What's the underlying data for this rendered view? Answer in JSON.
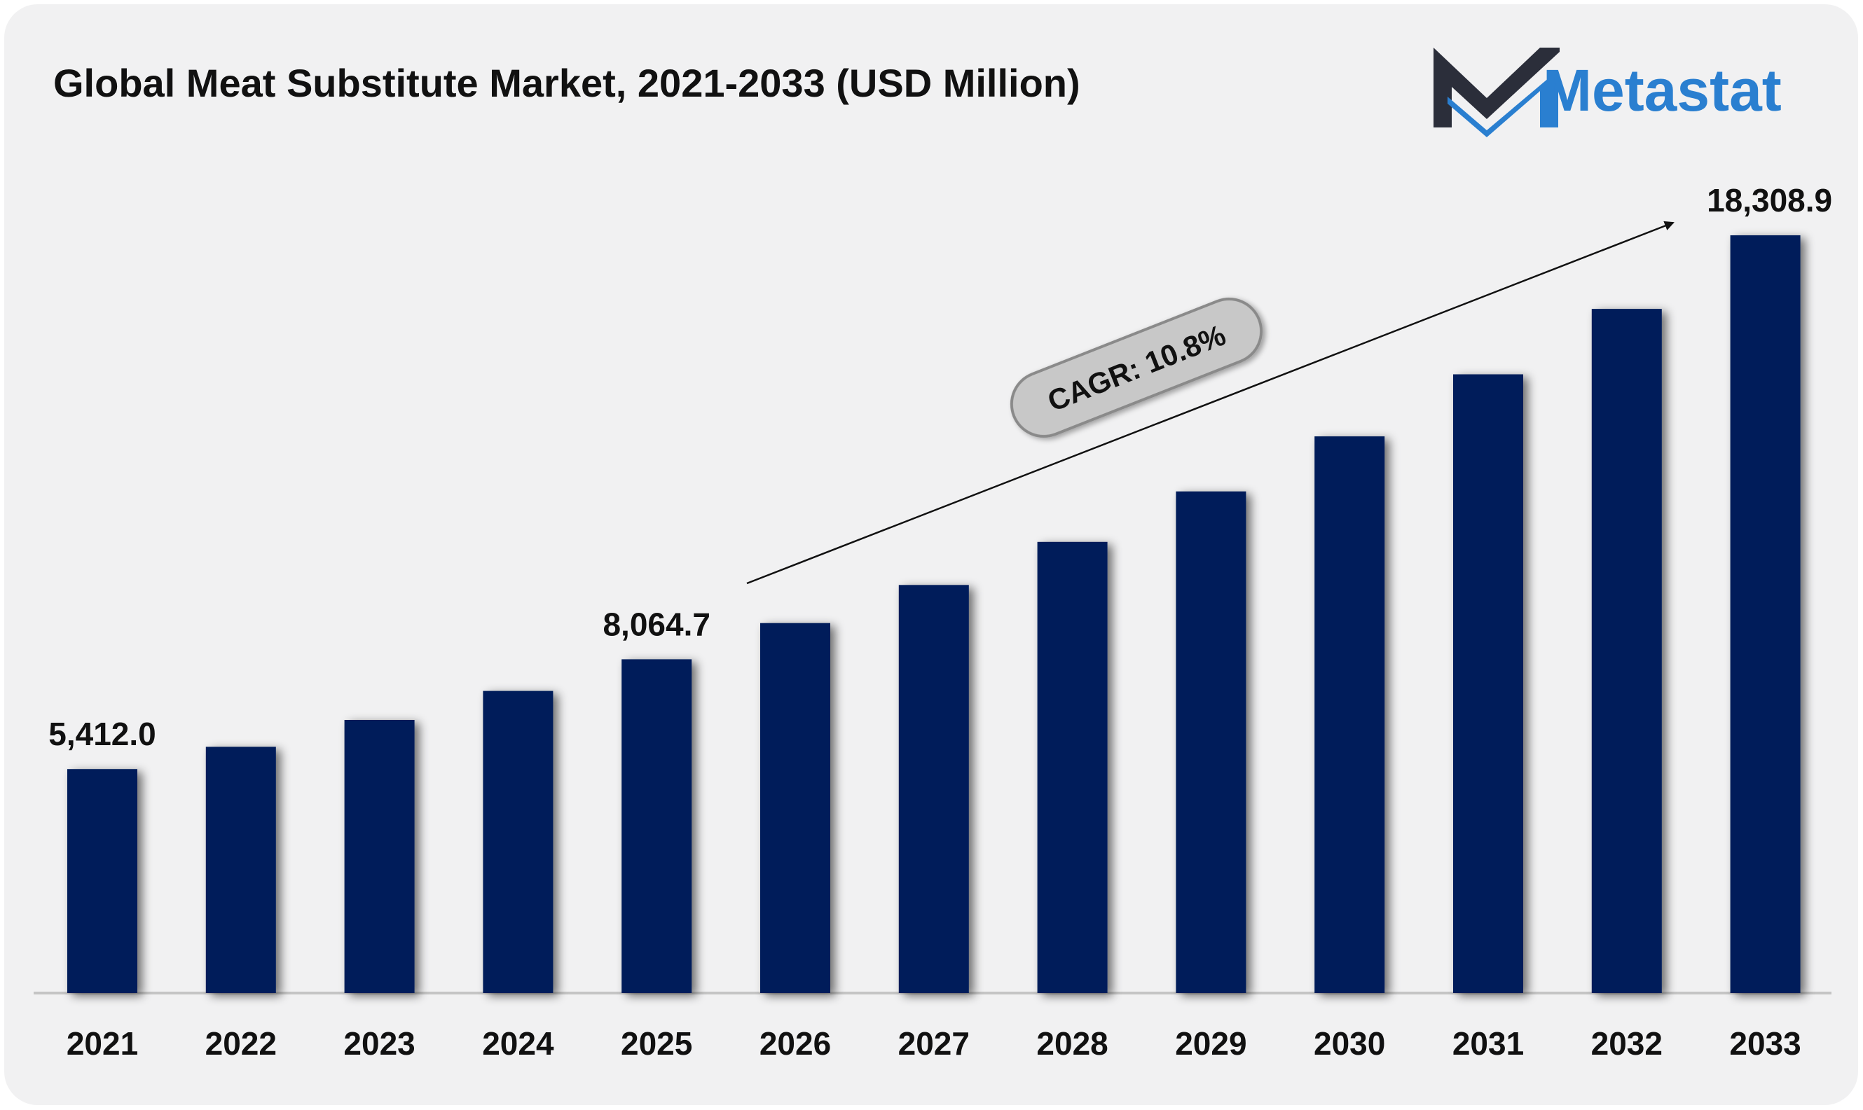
{
  "colors": {
    "card_background": "#f1f1f2",
    "bar": "#021f5a",
    "text": "#111111",
    "brand_blue": "#2a7fd0",
    "brand_dark": "#2b2e3a",
    "cagr_fill": "#c8c8c8",
    "cagr_border": "#8a8a8a"
  },
  "logo": {
    "brand_name": "Metastat",
    "icon": "metastat-m-logo-icon"
  },
  "cagr_label": "CAGR: 10.8%",
  "chart_data": {
    "type": "bar",
    "title": "Global Meat Substitute Market, 2021-2033 (USD Million)",
    "xlabel": "",
    "ylabel": "",
    "categories": [
      "2021",
      "2022",
      "2023",
      "2024",
      "2025",
      "2026",
      "2027",
      "2028",
      "2029",
      "2030",
      "2031",
      "2032",
      "2033"
    ],
    "values": [
      5412.0,
      5950,
      6600,
      7300,
      8064.7,
      8940,
      9860,
      10900,
      12120,
      13450,
      14950,
      16530,
      18308.9
    ],
    "data_labels": [
      {
        "index": 0,
        "text": "5,412.0"
      },
      {
        "index": 4,
        "text": "8,064.7"
      },
      {
        "index": 12,
        "text": "18,308.9"
      }
    ],
    "ylim": [
      0,
      19500
    ],
    "grid": false,
    "legend": "none"
  }
}
